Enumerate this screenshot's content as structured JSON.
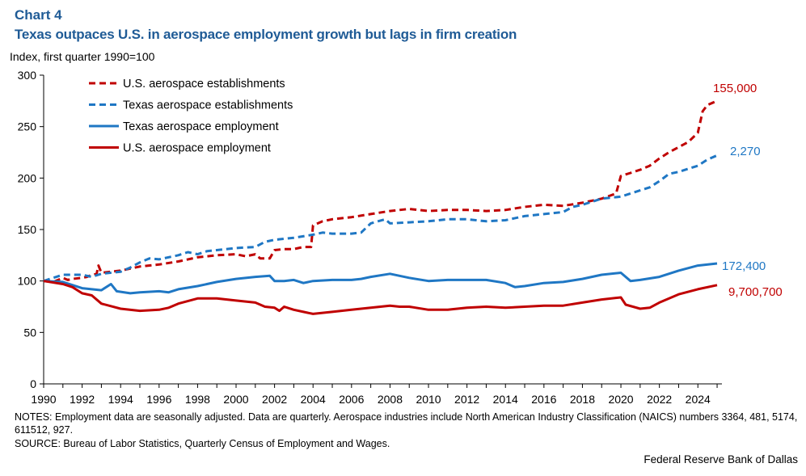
{
  "chart_label": "Chart 4",
  "chart_title": "Texas outpaces U.S. in aerospace employment growth but lags in firm creation",
  "notes": "NOTES: Employment data are seasonally adjusted. Data are quarterly. Aerospace industries include North American Industry Classification (NAICS) numbers 3364, 481, 5174, 611512, 927.",
  "source": "SOURCE: Bureau of Labor Statistics, Quarterly Census of Employment and Wages.",
  "credit": "Federal Reserve Bank of Dallas",
  "colors": {
    "us": "#c00000",
    "texas": "#1f77c4",
    "title": "#1f5b96"
  },
  "chart_data": {
    "type": "line",
    "ylabel": "Index, first quarter 1990=100",
    "xlim": [
      1990,
      2025.25
    ],
    "ylim": [
      0,
      300
    ],
    "yticks": [
      "0",
      "50",
      "100",
      "150",
      "200",
      "250",
      "300"
    ],
    "xticks": [
      "1990",
      "1992",
      "1994",
      "1996",
      "1998",
      "2000",
      "2002",
      "2004",
      "2006",
      "2008",
      "2010",
      "2012",
      "2014",
      "2016",
      "2018",
      "2020",
      "2022",
      "2024"
    ],
    "legend_position": "top-left",
    "series": [
      {
        "name": "U.S. aerospace establishments",
        "style": "dashed",
        "color": "us",
        "end_label": "155,000",
        "points": [
          [
            1990,
            100
          ],
          [
            1990.5,
            99
          ],
          [
            1991,
            103
          ],
          [
            1991.25,
            101
          ],
          [
            1991.5,
            102
          ],
          [
            1992,
            103
          ],
          [
            1992.25,
            104
          ],
          [
            1992.5,
            106
          ],
          [
            1992.75,
            107
          ],
          [
            1992.85,
            115
          ],
          [
            1993,
            108
          ],
          [
            1994,
            110
          ],
          [
            1995,
            114
          ],
          [
            1996,
            116
          ],
          [
            1997,
            119
          ],
          [
            1998,
            123
          ],
          [
            1999,
            125
          ],
          [
            2000,
            126
          ],
          [
            2000.5,
            124
          ],
          [
            2001,
            126
          ],
          [
            2001.25,
            122
          ],
          [
            2001.75,
            122
          ],
          [
            2002,
            130
          ],
          [
            2002.5,
            131
          ],
          [
            2003,
            131
          ],
          [
            2003.5,
            133
          ],
          [
            2003.9,
            133
          ],
          [
            2004,
            154
          ],
          [
            2004.5,
            158
          ],
          [
            2005,
            160
          ],
          [
            2006,
            162
          ],
          [
            2007,
            165
          ],
          [
            2008,
            168
          ],
          [
            2009,
            170
          ],
          [
            2009.5,
            169
          ],
          [
            2010,
            168
          ],
          [
            2011,
            169
          ],
          [
            2012,
            169
          ],
          [
            2013,
            168
          ],
          [
            2014,
            169
          ],
          [
            2015,
            172
          ],
          [
            2016,
            174
          ],
          [
            2017,
            173
          ],
          [
            2018,
            176
          ],
          [
            2019,
            180
          ],
          [
            2019.75,
            185
          ],
          [
            2020,
            202
          ],
          [
            2020.5,
            205
          ],
          [
            2021,
            208
          ],
          [
            2021.5,
            212
          ],
          [
            2022,
            219
          ],
          [
            2022.5,
            225
          ],
          [
            2023,
            230
          ],
          [
            2023.5,
            235
          ],
          [
            2024,
            244
          ],
          [
            2024.25,
            265
          ],
          [
            2024.5,
            271
          ],
          [
            2025,
            275
          ]
        ]
      },
      {
        "name": "Texas aerospace establishments",
        "style": "dashed",
        "color": "texas",
        "end_label": "2,270",
        "points": [
          [
            1990,
            100
          ],
          [
            1990.5,
            103
          ],
          [
            1991,
            106
          ],
          [
            1992,
            106
          ],
          [
            1992.5,
            104
          ],
          [
            1993,
            107
          ],
          [
            1994,
            109
          ],
          [
            1994.5,
            113
          ],
          [
            1995,
            118
          ],
          [
            1995.5,
            122
          ],
          [
            1996,
            121
          ],
          [
            1997,
            125
          ],
          [
            1997.5,
            128
          ],
          [
            1998,
            126
          ],
          [
            1998.5,
            129
          ],
          [
            1999,
            130
          ],
          [
            2000,
            132
          ],
          [
            2001,
            133
          ],
          [
            2001.5,
            138
          ],
          [
            2002,
            140
          ],
          [
            2003,
            142
          ],
          [
            2004,
            145
          ],
          [
            2004.5,
            147
          ],
          [
            2005,
            146
          ],
          [
            2006,
            146
          ],
          [
            2006.5,
            147
          ],
          [
            2007,
            156
          ],
          [
            2007.75,
            160
          ],
          [
            2008,
            156
          ],
          [
            2009,
            157
          ],
          [
            2010,
            158
          ],
          [
            2011,
            160
          ],
          [
            2012,
            160
          ],
          [
            2013,
            158
          ],
          [
            2014,
            159
          ],
          [
            2015,
            163
          ],
          [
            2016,
            165
          ],
          [
            2017,
            167
          ],
          [
            2017.5,
            172
          ],
          [
            2018,
            174
          ],
          [
            2019,
            180
          ],
          [
            2020,
            182
          ],
          [
            2021,
            188
          ],
          [
            2021.5,
            191
          ],
          [
            2022,
            197
          ],
          [
            2022.5,
            204
          ],
          [
            2023,
            206
          ],
          [
            2024,
            212
          ],
          [
            2024.5,
            218
          ],
          [
            2025,
            222
          ]
        ]
      },
      {
        "name": "Texas aerospace employment",
        "style": "solid",
        "color": "texas",
        "end_label": "172,400",
        "points": [
          [
            1990,
            100
          ],
          [
            1991,
            99
          ],
          [
            1992,
            93
          ],
          [
            1993,
            91
          ],
          [
            1993.5,
            97
          ],
          [
            1993.8,
            90
          ],
          [
            1994.5,
            88
          ],
          [
            1995,
            89
          ],
          [
            1996,
            90
          ],
          [
            1996.5,
            89
          ],
          [
            1997,
            92
          ],
          [
            1998,
            95
          ],
          [
            1999,
            99
          ],
          [
            2000,
            102
          ],
          [
            2001,
            104
          ],
          [
            2001.75,
            105
          ],
          [
            2002,
            100
          ],
          [
            2002.5,
            100
          ],
          [
            2003,
            101
          ],
          [
            2003.5,
            98
          ],
          [
            2004,
            100
          ],
          [
            2005,
            101
          ],
          [
            2006,
            101
          ],
          [
            2006.5,
            102
          ],
          [
            2007,
            104
          ],
          [
            2008,
            107
          ],
          [
            2009,
            103
          ],
          [
            2010,
            100
          ],
          [
            2011,
            101
          ],
          [
            2012,
            101
          ],
          [
            2013,
            101
          ],
          [
            2014,
            98
          ],
          [
            2014.5,
            94
          ],
          [
            2015,
            95
          ],
          [
            2016,
            98
          ],
          [
            2017,
            99
          ],
          [
            2018,
            102
          ],
          [
            2019,
            106
          ],
          [
            2020,
            108
          ],
          [
            2020.5,
            100
          ],
          [
            2021,
            101
          ],
          [
            2022,
            104
          ],
          [
            2023,
            110
          ],
          [
            2024,
            115
          ],
          [
            2025,
            117
          ]
        ]
      },
      {
        "name": "U.S. aerospace employment",
        "style": "solid",
        "color": "us",
        "end_label": "9,700,700",
        "points": [
          [
            1990,
            100
          ],
          [
            1991,
            97
          ],
          [
            1991.5,
            94
          ],
          [
            1992,
            88
          ],
          [
            1992.5,
            86
          ],
          [
            1993,
            78
          ],
          [
            1994,
            73
          ],
          [
            1995,
            71
          ],
          [
            1996,
            72
          ],
          [
            1996.5,
            74
          ],
          [
            1997,
            78
          ],
          [
            1998,
            83
          ],
          [
            1999,
            83
          ],
          [
            2000,
            81
          ],
          [
            2001,
            79
          ],
          [
            2001.5,
            75
          ],
          [
            2002,
            74
          ],
          [
            2002.25,
            71
          ],
          [
            2002.5,
            75
          ],
          [
            2003,
            72
          ],
          [
            2003.5,
            70
          ],
          [
            2004,
            68
          ],
          [
            2005,
            70
          ],
          [
            2006,
            72
          ],
          [
            2007,
            74
          ],
          [
            2008,
            76
          ],
          [
            2008.5,
            75
          ],
          [
            2009,
            75
          ],
          [
            2010,
            72
          ],
          [
            2011,
            72
          ],
          [
            2012,
            74
          ],
          [
            2013,
            75
          ],
          [
            2014,
            74
          ],
          [
            2015,
            75
          ],
          [
            2016,
            76
          ],
          [
            2017,
            76
          ],
          [
            2018,
            79
          ],
          [
            2019,
            82
          ],
          [
            2020,
            84
          ],
          [
            2020.25,
            77
          ],
          [
            2021,
            73
          ],
          [
            2021.5,
            74
          ],
          [
            2022,
            79
          ],
          [
            2023,
            87
          ],
          [
            2024,
            92
          ],
          [
            2025,
            96
          ]
        ]
      }
    ]
  }
}
